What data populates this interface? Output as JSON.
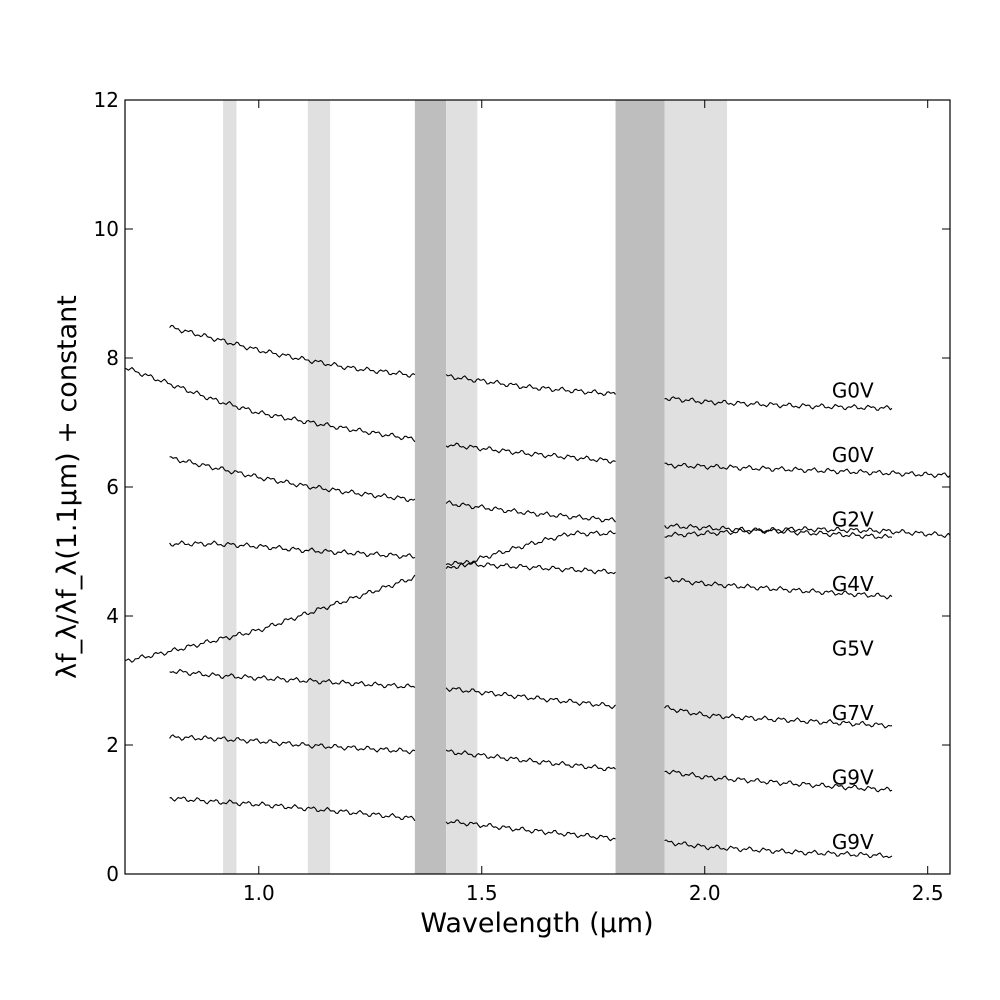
{
  "chart_data": {
    "type": "line",
    "title": "",
    "xlabel": "Wavelength (μm)",
    "ylabel": "λf_λ/λf_λ(1.1μm) + constant",
    "xlim": [
      0.7,
      2.55
    ],
    "ylim": [
      0,
      12
    ],
    "xticks": [
      1.0,
      1.5,
      2.0,
      2.5
    ],
    "xtick_labels": [
      "1.0",
      "1.5",
      "2.0",
      "2.5"
    ],
    "yticks": [
      0,
      2,
      4,
      6,
      8,
      10,
      12
    ],
    "ytick_labels": [
      "0",
      "2",
      "4",
      "6",
      "8",
      "10",
      "12"
    ],
    "grid": false,
    "legend": "none",
    "colors": {
      "line": "#000000",
      "band_light": "#e0e0e0",
      "band_dark": "#bebebe"
    },
    "shaded_bands": [
      {
        "x": [
          0.92,
          0.95
        ],
        "shade": "light"
      },
      {
        "x": [
          1.11,
          1.16
        ],
        "shade": "light"
      },
      {
        "x": [
          1.35,
          1.42
        ],
        "shade": "dark"
      },
      {
        "x": [
          1.42,
          1.49
        ],
        "shade": "light"
      },
      {
        "x": [
          1.8,
          1.91
        ],
        "shade": "dark"
      },
      {
        "x": [
          1.91,
          2.05
        ],
        "shade": "light"
      }
    ],
    "series_labels": [
      "G0V",
      "G0V",
      "G2V",
      "G4V",
      "G5V",
      "G7V",
      "G9V",
      "G9V"
    ],
    "label_y": [
      7.5,
      6.5,
      5.5,
      4.5,
      3.5,
      2.5,
      1.5,
      0.5
    ],
    "series": [
      {
        "name": "G0V",
        "x": [
          0.8,
          0.9,
          1.0,
          1.1,
          1.2,
          1.35,
          1.42,
          1.6,
          1.8,
          1.91,
          2.0,
          2.2,
          2.42
        ],
        "y": [
          8.48,
          8.3,
          8.12,
          7.98,
          7.85,
          7.73,
          7.72,
          7.55,
          7.44,
          7.38,
          7.32,
          7.26,
          7.22
        ]
      },
      {
        "name": "G0V",
        "x": [
          0.7,
          0.8,
          0.9,
          1.0,
          1.1,
          1.2,
          1.35,
          1.42,
          1.6,
          1.8,
          1.91,
          2.2,
          2.55
        ],
        "y": [
          7.85,
          7.6,
          7.35,
          7.15,
          7.02,
          6.9,
          6.74,
          6.66,
          6.52,
          6.4,
          6.34,
          6.27,
          6.18
        ]
      },
      {
        "name": "G2V",
        "x": [
          0.8,
          0.9,
          1.0,
          1.1,
          1.2,
          1.35,
          1.42,
          1.6,
          1.8,
          1.91,
          2.2,
          2.42
        ],
        "y": [
          6.45,
          6.3,
          6.15,
          6.02,
          5.92,
          5.8,
          5.75,
          5.6,
          5.48,
          5.4,
          5.3,
          5.22
        ]
      },
      {
        "name": "G4V",
        "x": [
          0.8,
          0.9,
          1.0,
          1.1,
          1.2,
          1.35,
          1.42,
          1.6,
          1.8,
          1.91,
          2.0,
          2.2,
          2.42
        ],
        "y": [
          5.12,
          5.12,
          5.08,
          5.02,
          4.98,
          4.92,
          4.82,
          4.76,
          4.68,
          4.58,
          4.5,
          4.4,
          4.3
        ]
      },
      {
        "name": "G5V",
        "x": [
          0.7,
          0.8,
          0.9,
          1.0,
          1.1,
          1.2,
          1.35,
          1.42,
          1.5,
          1.6,
          1.7,
          1.8,
          1.91,
          2.0,
          2.2,
          2.4,
          2.55
        ],
        "y": [
          3.3,
          3.45,
          3.62,
          3.78,
          4.02,
          4.25,
          4.6,
          4.72,
          4.9,
          5.1,
          5.28,
          5.28,
          5.25,
          5.28,
          5.35,
          5.32,
          5.25
        ]
      },
      {
        "name": "G7V",
        "x": [
          0.8,
          0.9,
          1.0,
          1.1,
          1.2,
          1.35,
          1.42,
          1.6,
          1.8,
          1.91,
          2.0,
          2.2,
          2.42
        ],
        "y": [
          3.15,
          3.08,
          3.04,
          3.0,
          2.96,
          2.9,
          2.88,
          2.74,
          2.6,
          2.58,
          2.46,
          2.38,
          2.3
        ]
      },
      {
        "name": "G9V",
        "x": [
          0.8,
          0.9,
          1.0,
          1.1,
          1.2,
          1.35,
          1.42,
          1.6,
          1.8,
          1.91,
          2.0,
          2.2,
          2.42
        ],
        "y": [
          2.12,
          2.1,
          2.06,
          2.0,
          1.96,
          1.9,
          1.9,
          1.76,
          1.62,
          1.6,
          1.5,
          1.4,
          1.3
        ]
      },
      {
        "name": "G9V",
        "x": [
          0.8,
          0.9,
          1.0,
          1.1,
          1.2,
          1.35,
          1.42,
          1.6,
          1.8,
          1.91,
          2.0,
          2.2,
          2.42
        ],
        "y": [
          1.18,
          1.12,
          1.08,
          1.02,
          0.96,
          0.86,
          0.82,
          0.68,
          0.55,
          0.5,
          0.42,
          0.34,
          0.28
        ]
      }
    ]
  }
}
